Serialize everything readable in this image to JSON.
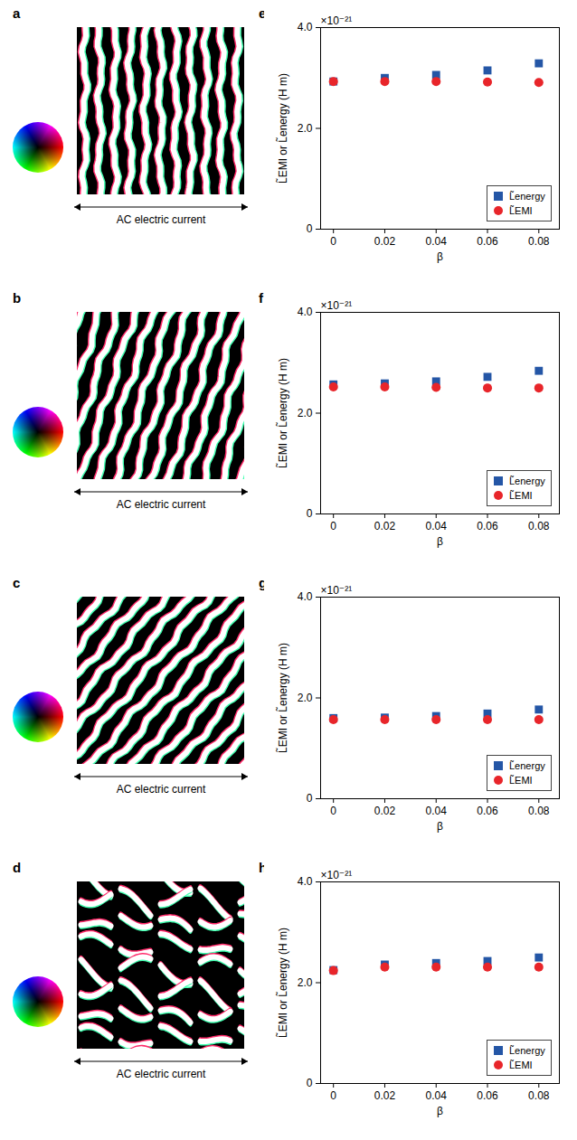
{
  "panels": [
    {
      "panel_label": "a",
      "caption": "AC electric current"
    },
    {
      "panel_label": "b",
      "caption": "AC electric current"
    },
    {
      "panel_label": "c",
      "caption": "AC electric current"
    },
    {
      "panel_label": "d",
      "caption": "AC electric current"
    }
  ],
  "chart_data": [
    {
      "panel_label": "e",
      "type": "scatter",
      "annotations": [
        "×10⁻²¹"
      ],
      "x_label": "β",
      "y_label": "L̃EMI or L̃energy (H m)",
      "x": [
        0,
        0.02,
        0.04,
        0.06,
        0.08
      ],
      "series": [
        {
          "name": "L̃energy",
          "color": "#2456a6",
          "marker": "square",
          "values": [
            2.93,
            3.0,
            3.06,
            3.15,
            3.29
          ]
        },
        {
          "name": "L̃EMI",
          "color": "#e8252a",
          "marker": "circle",
          "values": [
            2.93,
            2.93,
            2.93,
            2.92,
            2.91
          ]
        }
      ],
      "xlim": [
        -0.005,
        0.088
      ],
      "xticks": [
        0,
        0.02,
        0.04,
        0.06,
        0.08
      ],
      "ylim": [
        0,
        4
      ],
      "yticks": [
        0,
        {
          "value": 2,
          "label": "2.0"
        },
        {
          "value": 4,
          "label": "4.0"
        }
      ],
      "legend": "bottom-right"
    },
    {
      "panel_label": "f",
      "type": "scatter",
      "annotations": [
        "×10⁻²¹"
      ],
      "x_label": "β",
      "y_label": "L̃EMI or L̃energy (H m)",
      "x": [
        0,
        0.02,
        0.04,
        0.06,
        0.08
      ],
      "series": [
        {
          "name": "L̃energy",
          "color": "#2456a6",
          "marker": "square",
          "values": [
            2.57,
            2.59,
            2.63,
            2.72,
            2.84
          ]
        },
        {
          "name": "L̃EMI",
          "color": "#e8252a",
          "marker": "circle",
          "values": [
            2.52,
            2.52,
            2.51,
            2.5,
            2.5
          ]
        }
      ],
      "xlim": [
        -0.005,
        0.088
      ],
      "xticks": [
        0,
        0.02,
        0.04,
        0.06,
        0.08
      ],
      "ylim": [
        0,
        4
      ],
      "yticks": [
        0,
        {
          "value": 2,
          "label": "2.0"
        },
        {
          "value": 4,
          "label": "4.0"
        }
      ],
      "legend": "bottom-right"
    },
    {
      "panel_label": "g",
      "type": "scatter",
      "annotations": [
        "×10⁻²¹"
      ],
      "x_label": "β",
      "y_label": "L̃EMI or L̃energy (H m)",
      "x": [
        0,
        0.02,
        0.04,
        0.06,
        0.08
      ],
      "series": [
        {
          "name": "L̃energy",
          "color": "#2456a6",
          "marker": "square",
          "values": [
            1.6,
            1.61,
            1.64,
            1.69,
            1.77
          ]
        },
        {
          "name": "L̃EMI",
          "color": "#e8252a",
          "marker": "circle",
          "values": [
            1.57,
            1.57,
            1.57,
            1.57,
            1.57
          ]
        }
      ],
      "xlim": [
        -0.005,
        0.088
      ],
      "xticks": [
        0,
        0.02,
        0.04,
        0.06,
        0.08
      ],
      "ylim": [
        0,
        4
      ],
      "yticks": [
        0,
        {
          "value": 2,
          "label": "2.0"
        },
        {
          "value": 4,
          "label": "4.0"
        }
      ],
      "legend": "bottom-right"
    },
    {
      "panel_label": "h",
      "type": "scatter",
      "annotations": [
        "×10⁻²¹"
      ],
      "x_label": "β",
      "y_label": "L̃EMI or L̃energy (H m)",
      "x": [
        0,
        0.02,
        0.04,
        0.06,
        0.08
      ],
      "series": [
        {
          "name": "L̃energy",
          "color": "#2456a6",
          "marker": "square",
          "values": [
            2.25,
            2.36,
            2.39,
            2.43,
            2.5
          ]
        },
        {
          "name": "L̃EMI",
          "color": "#e8252a",
          "marker": "circle",
          "values": [
            2.24,
            2.31,
            2.31,
            2.31,
            2.31
          ]
        }
      ],
      "xlim": [
        -0.005,
        0.088
      ],
      "xticks": [
        0,
        0.02,
        0.04,
        0.06,
        0.08
      ],
      "ylim": [
        0,
        4
      ],
      "yticks": [
        0,
        {
          "value": 2,
          "label": "2.0"
        },
        {
          "value": 4,
          "label": "4.0"
        }
      ],
      "legend": "bottom-right"
    }
  ]
}
